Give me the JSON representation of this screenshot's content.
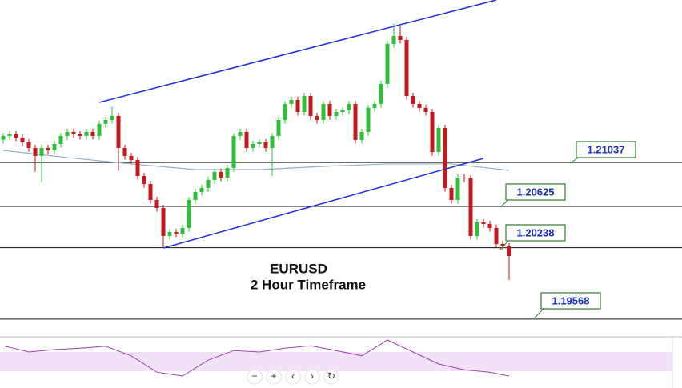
{
  "chart_data": {
    "type": "candlestick",
    "annotations": [
      "EURUSD",
      "2 Hour Timeframe"
    ],
    "ylim": [
      1.1941,
      1.2256
    ],
    "bull_color": "#2fbf3a",
    "bear_color": "#c8161d",
    "open": [
      1.2125,
      1.21285,
      1.213,
      1.2127,
      1.21225,
      1.21173,
      1.21098,
      1.21173,
      1.2115,
      1.2121,
      1.21285,
      1.21323,
      1.213,
      1.21285,
      1.21323,
      1.21285,
      1.21398,
      1.21435,
      1.21473,
      1.21173,
      1.21098,
      1.2106,
      1.2091,
      1.20835,
      1.20685,
      1.2061,
      1.20348,
      1.20385,
      1.2037,
      1.20423,
      1.20685,
      1.2076,
      1.20798,
      1.20873,
      1.20948,
      1.20895,
      1.20985,
      1.21285,
      1.21323,
      1.21173,
      1.2121,
      1.21225,
      1.21173,
      1.21285,
      1.21435,
      1.21585,
      1.21623,
      1.2151,
      1.2166,
      1.21473,
      1.21435,
      1.21585,
      1.21473,
      1.2151,
      1.21525,
      1.21585,
      1.21248,
      1.21323,
      1.21548,
      1.21585,
      1.21773,
      1.22148,
      1.22223,
      1.22185,
      1.2166,
      1.21585,
      1.21548,
      1.2151,
      1.21135,
      1.2136,
      1.20798,
      1.20685,
      1.20895,
      1.2089,
      1.20348,
      1.20475,
      1.2046,
      1.20423,
      1.20273,
      1.2025
    ],
    "high": [
      1.21315,
      1.2133,
      1.2133,
      1.213,
      1.21255,
      1.21203,
      1.21203,
      1.21203,
      1.2124,
      1.21315,
      1.21353,
      1.21353,
      1.2133,
      1.21353,
      1.21353,
      1.21428,
      1.21465,
      1.2156,
      1.21503,
      1.21203,
      1.21128,
      1.2109,
      1.2094,
      1.20865,
      1.20715,
      1.2064,
      1.20415,
      1.20415,
      1.20453,
      1.20715,
      1.2079,
      1.20828,
      1.20903,
      1.20978,
      1.20978,
      1.21015,
      1.21315,
      1.21353,
      1.21353,
      1.2124,
      1.21255,
      1.21255,
      1.21315,
      1.21465,
      1.21615,
      1.21653,
      1.21653,
      1.2169,
      1.2169,
      1.21503,
      1.21615,
      1.21615,
      1.2154,
      1.21555,
      1.21615,
      1.21615,
      1.21353,
      1.21578,
      1.21615,
      1.21803,
      1.22178,
      1.22335,
      1.2232,
      1.22215,
      1.2169,
      1.21615,
      1.21578,
      1.2154,
      1.2139,
      1.2139,
      1.20828,
      1.20925,
      1.20925,
      1.2092,
      1.20505,
      1.20505,
      1.2049,
      1.20453,
      1.20303,
      1.2028
    ],
    "low": [
      1.21215,
      1.2125,
      1.21235,
      1.2119,
      1.21138,
      1.2095,
      1.2085,
      1.21115,
      1.21115,
      1.21175,
      1.2125,
      1.21265,
      1.2125,
      1.2125,
      1.2125,
      1.2125,
      1.21363,
      1.214,
      1.2096,
      1.21063,
      1.21025,
      1.20875,
      1.208,
      1.2065,
      1.20575,
      1.20235,
      1.20313,
      1.20335,
      1.20335,
      1.20388,
      1.2065,
      1.20725,
      1.20763,
      1.20838,
      1.2086,
      1.2086,
      1.2095,
      1.2125,
      1.21138,
      1.21138,
      1.21175,
      1.21138,
      1.2091,
      1.2125,
      1.214,
      1.2155,
      1.21475,
      1.21475,
      1.21438,
      1.214,
      1.214,
      1.21438,
      1.21438,
      1.21475,
      1.2149,
      1.21213,
      1.21213,
      1.21288,
      1.21513,
      1.2155,
      1.21738,
      1.22113,
      1.2215,
      1.21625,
      1.2155,
      1.21513,
      1.21475,
      1.211,
      1.211,
      1.20763,
      1.2065,
      1.2065,
      1.20855,
      1.20313,
      1.20313,
      1.20425,
      1.20388,
      1.20238,
      1.20215,
      1.19935
    ],
    "close": [
      1.21285,
      1.213,
      1.2127,
      1.21225,
      1.21173,
      1.21098,
      1.21173,
      1.2115,
      1.2121,
      1.21285,
      1.21323,
      1.213,
      1.21285,
      1.21323,
      1.21285,
      1.21398,
      1.21435,
      1.21473,
      1.21173,
      1.21098,
      1.2106,
      1.2091,
      1.20835,
      1.20685,
      1.2061,
      1.20348,
      1.20385,
      1.2037,
      1.20423,
      1.20685,
      1.2076,
      1.20798,
      1.20873,
      1.20948,
      1.20895,
      1.20985,
      1.21285,
      1.21323,
      1.21173,
      1.2121,
      1.21225,
      1.21173,
      1.21285,
      1.21435,
      1.21585,
      1.21623,
      1.2151,
      1.2166,
      1.21473,
      1.21435,
      1.21585,
      1.21473,
      1.2151,
      1.21525,
      1.21585,
      1.21248,
      1.21323,
      1.21548,
      1.21585,
      1.21773,
      1.22148,
      1.22223,
      1.22185,
      1.2166,
      1.21585,
      1.21548,
      1.2151,
      1.21135,
      1.2136,
      1.20798,
      1.20685,
      1.20895,
      1.2089,
      1.20348,
      1.20475,
      1.2046,
      1.20423,
      1.20273,
      1.2025,
      1.2016
    ],
    "moving_average": {
      "color": "#8fb2c4",
      "x": [
        0,
        10,
        20,
        30,
        40,
        50,
        60,
        70,
        79
      ],
      "values": [
        1.2115,
        1.21083,
        1.21023,
        1.2097,
        1.2097,
        1.21,
        1.21023,
        1.21023,
        1.20963
      ]
    },
    "trendlines": [
      {
        "color": "#1f2fd6",
        "x": [
          15,
          77
        ],
        "values": [
          1.216,
          1.2256
        ]
      },
      {
        "color": "#1f2fd6",
        "x": [
          25,
          75
        ],
        "values": [
          1.20235,
          1.21075
        ]
      }
    ],
    "levels": [
      1.21037,
      1.20625,
      1.20238,
      1.19568
    ],
    "rsi": {
      "color": "#a23bb5",
      "ylim": [
        0,
        100
      ],
      "band": [
        30,
        70
      ],
      "x": [
        0,
        4,
        8,
        12,
        16,
        20,
        24,
        28,
        32,
        36,
        40,
        44,
        48,
        52,
        56,
        60,
        64,
        68,
        72,
        76,
        79
      ],
      "values": [
        83,
        70,
        75,
        78,
        82,
        62,
        28,
        20,
        53,
        73,
        70,
        78,
        83,
        73,
        62,
        95,
        70,
        45,
        33,
        28,
        20
      ]
    }
  },
  "controls": [
    "−",
    "+",
    "‹",
    "›",
    "↻"
  ]
}
